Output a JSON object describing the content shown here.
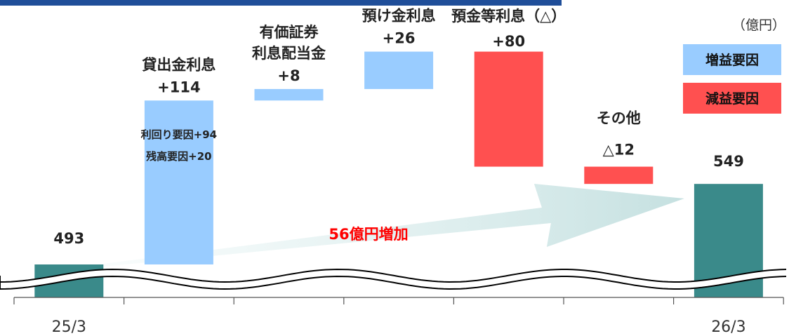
{
  "unit_label": "（億円）",
  "legend": [
    {
      "label": "増益要因",
      "color": "#99CCFF"
    },
    {
      "label": "減益要因",
      "color": "#FF5050"
    }
  ],
  "growth_label": "56億円増加",
  "breakdown_notes": [
    "利回り要因+94",
    "残高要因+20"
  ],
  "colors": {
    "end_bar": "#3A8A8A",
    "increase": "#99CCFF",
    "decrease": "#FF5050",
    "header_band": "#1F4E99",
    "growth_text": "#FF0000"
  },
  "chart_data": {
    "type": "bar",
    "subtype": "waterfall",
    "unit": "億円",
    "axis_break": true,
    "start": {
      "label": "25/3",
      "value": 493
    },
    "end": {
      "label": "26/3",
      "value": 549
    },
    "steps": [
      {
        "name": "貸出金利息",
        "value_label": "+114",
        "value": 114,
        "effect": "increase"
      },
      {
        "name": "有価証券利息配当金",
        "name_lines": [
          "有価証券",
          "利息配当金"
        ],
        "value_label": "+8",
        "value": 8,
        "effect": "increase"
      },
      {
        "name": "預け金利息",
        "value_label": "+26",
        "value": 26,
        "effect": "increase"
      },
      {
        "name": "預金等利息（△）",
        "value_label": "+80",
        "value": -80,
        "effect": "decrease"
      },
      {
        "name": "その他",
        "value_label": "△12",
        "value": -12,
        "effect": "decrease"
      }
    ]
  }
}
